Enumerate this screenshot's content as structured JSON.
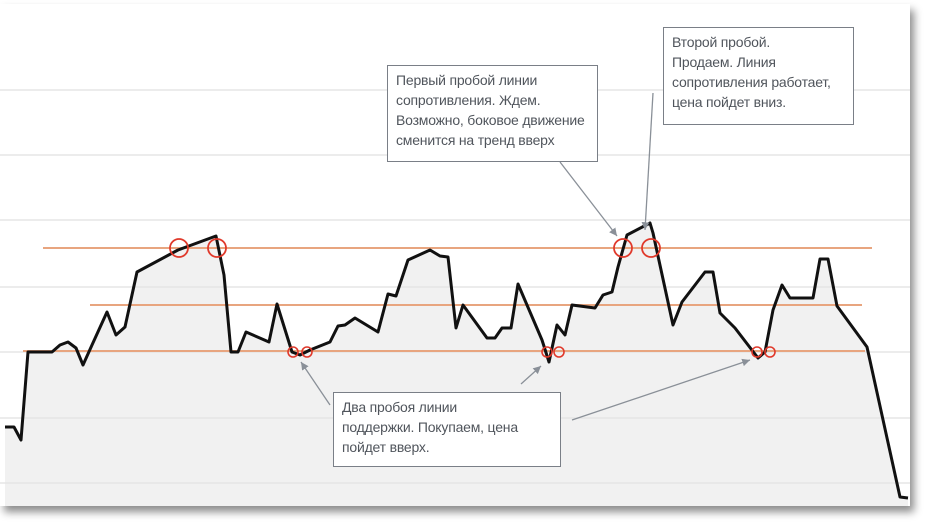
{
  "colors": {
    "price_line": "#111111",
    "level_line": "#e8a57f",
    "breakout_circle": "#e0392b",
    "fill": "#f1f1f1",
    "grid": "#e6e6e6",
    "arrow": "#8a9098"
  },
  "notes": {
    "resistance_first": {
      "lines": [
        "Первый пробой линии",
        "сопротивления. Ждем.",
        "Возможно, боковое движение",
        "сменится на тренд вверх"
      ]
    },
    "resistance_second": {
      "lines": [
        "Второй пробой.",
        "Продаем. Линия",
        "сопротивления работает,",
        "цена пойдет вниз."
      ]
    },
    "support": {
      "lines": [
        "Два пробоя линии",
        "поддержки. Покупаем, цена",
        "пойдет вверх."
      ]
    }
  }
}
